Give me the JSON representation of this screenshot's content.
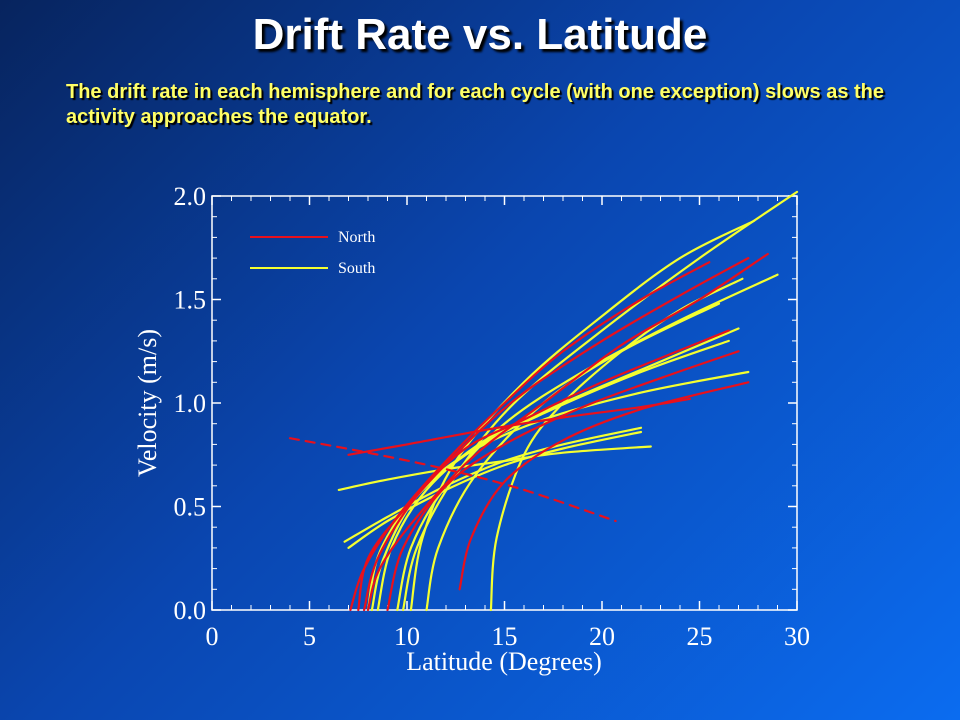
{
  "slide": {
    "title": "Drift Rate vs. Latitude",
    "subtitle": "The drift rate in each hemisphere and for each cycle (with one exception) slows as the activity approaches the equator."
  },
  "colors": {
    "north": "#e8101c",
    "south": "#f4ff30",
    "axis": "#ffffff",
    "title": "#ffffff",
    "subtitle": "#ffff66"
  },
  "chart_data": {
    "type": "line",
    "title": "",
    "xlabel": "Latitude (Degrees)",
    "ylabel": "Velocity (m/s)",
    "xlim": [
      0,
      30
    ],
    "ylim": [
      0,
      2.0
    ],
    "xticks": [
      0,
      5,
      10,
      15,
      20,
      25,
      30
    ],
    "yticks": [
      0.0,
      0.5,
      1.0,
      1.5,
      2.0
    ],
    "xtick_labels": [
      "0",
      "5",
      "10",
      "15",
      "20",
      "25",
      "30"
    ],
    "ytick_labels": [
      "0.0",
      "0.5",
      "1.0",
      "1.5",
      "2.0"
    ],
    "grid": false,
    "legend_position": "top-left",
    "legend": [
      {
        "name": "North",
        "color_key": "north"
      },
      {
        "name": "South",
        "color_key": "south"
      }
    ],
    "series": [
      {
        "hemisphere": "North",
        "dashed": false,
        "x": [
          7.1,
          7.8,
          9.5,
          12,
          15,
          18,
          22,
          25.5
        ],
        "y": [
          0.0,
          0.2,
          0.45,
          0.72,
          1.0,
          1.25,
          1.5,
          1.68
        ]
      },
      {
        "hemisphere": "North",
        "dashed": false,
        "x": [
          7.5,
          8.0,
          10,
          13,
          16,
          20,
          24,
          27.5
        ],
        "y": [
          0.0,
          0.25,
          0.5,
          0.8,
          1.05,
          1.3,
          1.52,
          1.7
        ]
      },
      {
        "hemisphere": "North",
        "dashed": false,
        "x": [
          8.0,
          8.6,
          10.5,
          13.5,
          17,
          21,
          25,
          28.5
        ],
        "y": [
          0.0,
          0.2,
          0.45,
          0.75,
          1.0,
          1.28,
          1.5,
          1.72
        ]
      },
      {
        "hemisphere": "North",
        "dashed": false,
        "x": [
          7.8,
          8.5,
          10.5,
          13,
          16,
          20,
          26.5
        ],
        "y": [
          0.0,
          0.25,
          0.55,
          0.78,
          0.92,
          1.1,
          1.35
        ]
      },
      {
        "hemisphere": "North",
        "dashed": false,
        "x": [
          9.0,
          9.8,
          12,
          15,
          19,
          23,
          27
        ],
        "y": [
          0.0,
          0.3,
          0.6,
          0.8,
          0.98,
          1.12,
          1.25
        ]
      },
      {
        "hemisphere": "North",
        "dashed": false,
        "x": [
          12.7,
          13.3,
          15,
          18,
          22,
          27.5
        ],
        "y": [
          0.1,
          0.35,
          0.62,
          0.82,
          0.97,
          1.1
        ]
      },
      {
        "hemisphere": "North",
        "dashed": false,
        "x": [
          7.0,
          10,
          14,
          18,
          22,
          24.5
        ],
        "y": [
          0.75,
          0.8,
          0.87,
          0.93,
          0.98,
          1.02
        ]
      },
      {
        "hemisphere": "North",
        "dashed": true,
        "x": [
          4.0,
          8,
          12,
          16,
          20.7
        ],
        "y": [
          0.83,
          0.76,
          0.68,
          0.58,
          0.43
        ]
      },
      {
        "hemisphere": "South",
        "dashed": false,
        "x": [
          6.5,
          9,
          12,
          15,
          18,
          22.5
        ],
        "y": [
          0.58,
          0.63,
          0.68,
          0.72,
          0.76,
          0.79
        ]
      },
      {
        "hemisphere": "South",
        "dashed": false,
        "x": [
          6.8,
          9,
          12,
          15,
          18,
          22
        ],
        "y": [
          0.33,
          0.45,
          0.6,
          0.72,
          0.8,
          0.88
        ]
      },
      {
        "hemisphere": "South",
        "dashed": false,
        "x": [
          7.0,
          9,
          12,
          15,
          18,
          22
        ],
        "y": [
          0.3,
          0.43,
          0.58,
          0.7,
          0.78,
          0.86
        ]
      },
      {
        "hemisphere": "South",
        "dashed": false,
        "x": [
          8.2,
          8.8,
          10.5,
          13,
          17,
          22,
          27.5
        ],
        "y": [
          0.0,
          0.25,
          0.55,
          0.75,
          0.92,
          1.05,
          1.15
        ]
      },
      {
        "hemisphere": "South",
        "dashed": false,
        "x": [
          8.5,
          9.2,
          11,
          14,
          18,
          23,
          27
        ],
        "y": [
          0.0,
          0.3,
          0.58,
          0.82,
          1.0,
          1.2,
          1.36
        ]
      },
      {
        "hemisphere": "South",
        "dashed": false,
        "x": [
          9.5,
          10.2,
          12,
          15,
          19,
          24,
          29
        ],
        "y": [
          0.0,
          0.3,
          0.6,
          0.9,
          1.15,
          1.4,
          1.62
        ]
      },
      {
        "hemisphere": "South",
        "dashed": false,
        "x": [
          9.8,
          10.5,
          12.5,
          15.5,
          20,
          25,
          30
        ],
        "y": [
          0.0,
          0.3,
          0.65,
          1.0,
          1.35,
          1.7,
          2.02
        ]
      },
      {
        "hemisphere": "South",
        "dashed": false,
        "x": [
          10.2,
          10.8,
          12.5,
          16,
          20,
          24,
          27.8
        ],
        "y": [
          0.0,
          0.35,
          0.72,
          1.1,
          1.42,
          1.7,
          1.88
        ]
      },
      {
        "hemisphere": "South",
        "dashed": false,
        "x": [
          11.0,
          11.6,
          13.5,
          17,
          21,
          26
        ],
        "y": [
          0.0,
          0.3,
          0.65,
          1.0,
          1.25,
          1.48
        ]
      },
      {
        "hemisphere": "South",
        "dashed": false,
        "x": [
          14.3,
          14.6,
          16,
          18,
          21,
          24,
          27.2
        ],
        "y": [
          0.0,
          0.35,
          0.75,
          1.0,
          1.25,
          1.45,
          1.6
        ]
      },
      {
        "hemisphere": "South",
        "dashed": false,
        "x": [
          8.0,
          8.6,
          10.5,
          13.5,
          17,
          22,
          26.5
        ],
        "y": [
          0.0,
          0.28,
          0.55,
          0.78,
          0.95,
          1.15,
          1.3
        ]
      }
    ]
  }
}
